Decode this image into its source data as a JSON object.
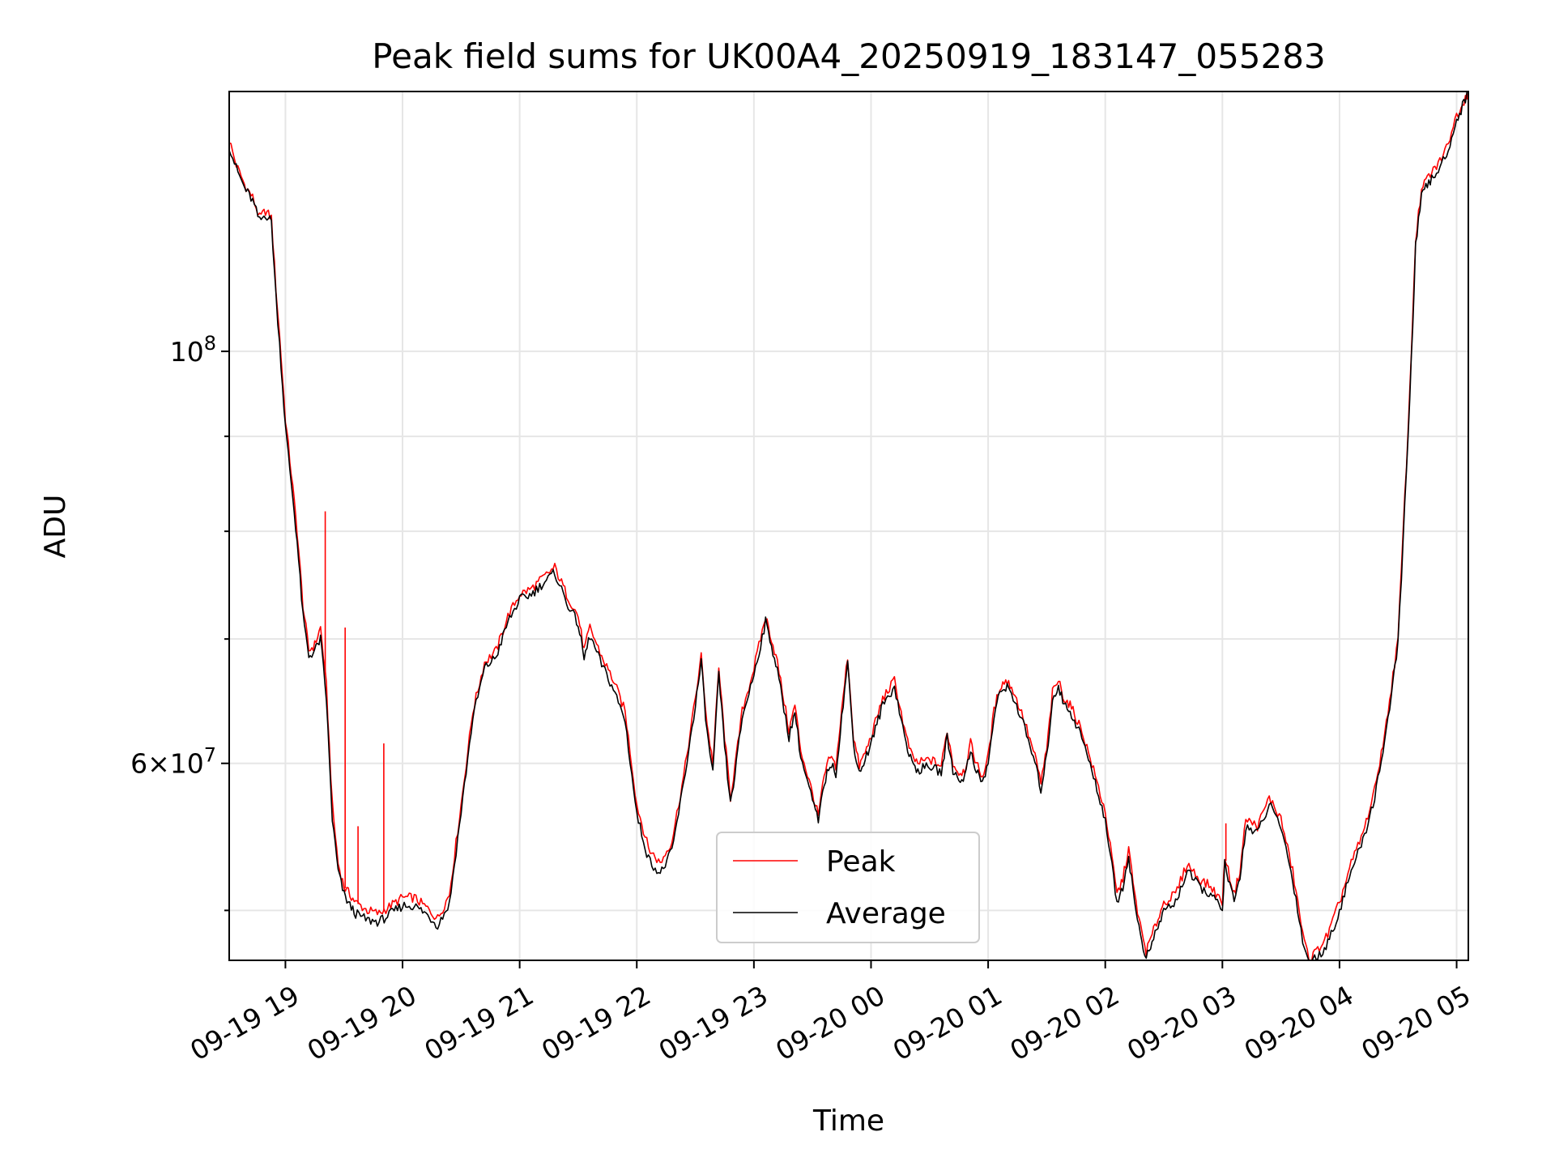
{
  "chart_data": {
    "type": "line",
    "title": "Peak field sums for UK00A4_20250919_183147_055283",
    "xlabel": "Time",
    "ylabel": "ADU",
    "y_scale": "log",
    "ylim": [
      47000000,
      138000000
    ],
    "xlim_hours": [
      18.52,
      29.1
    ],
    "grid": true,
    "legend_position": "lower center",
    "x_ticks": [
      {
        "hour": 19,
        "label": "09-19 19"
      },
      {
        "hour": 20,
        "label": "09-19 20"
      },
      {
        "hour": 21,
        "label": "09-19 21"
      },
      {
        "hour": 22,
        "label": "09-19 22"
      },
      {
        "hour": 23,
        "label": "09-19 23"
      },
      {
        "hour": 24,
        "label": "09-20 00"
      },
      {
        "hour": 25,
        "label": "09-20 01"
      },
      {
        "hour": 26,
        "label": "09-20 02"
      },
      {
        "hour": 27,
        "label": "09-20 03"
      },
      {
        "hour": 28,
        "label": "09-20 04"
      },
      {
        "hour": 29,
        "label": "09-20 05"
      }
    ],
    "y_major_ticks": [
      {
        "value": 100000000,
        "mantissa": "",
        "base": "10",
        "exponent": "8"
      },
      {
        "value": 60000000,
        "mantissa": "6",
        "base": "10",
        "exponent": "7"
      }
    ],
    "y_minor_ticks": [
      50000000,
      70000000,
      80000000,
      90000000
    ],
    "series": [
      {
        "name": "Peak",
        "color": "#ff0000",
        "x_hours": [
          18.52,
          18.58,
          18.65,
          18.72,
          18.78,
          18.83,
          18.88,
          18.92,
          18.95,
          19.0,
          19.05,
          19.1,
          19.15,
          19.2,
          19.25,
          19.3,
          19.35,
          19.4,
          19.45,
          19.5,
          19.55,
          19.6,
          19.7,
          19.8,
          19.9,
          20.0,
          20.1,
          20.2,
          20.3,
          20.4,
          20.5,
          20.6,
          20.7,
          20.8,
          20.9,
          21.0,
          21.1,
          21.2,
          21.3,
          21.4,
          21.5,
          21.55,
          21.6,
          21.7,
          21.8,
          21.9,
          22.0,
          22.1,
          22.2,
          22.3,
          22.4,
          22.5,
          22.55,
          22.6,
          22.65,
          22.7,
          22.75,
          22.8,
          22.85,
          22.9,
          23.0,
          23.1,
          23.15,
          23.2,
          23.3,
          23.35,
          23.4,
          23.5,
          23.55,
          23.6,
          23.65,
          23.7,
          23.75,
          23.8,
          23.85,
          23.9,
          23.95,
          24.0,
          24.05,
          24.1,
          24.2,
          24.3,
          24.35,
          24.4,
          24.5,
          24.6,
          24.65,
          24.7,
          24.75,
          24.8,
          24.85,
          24.9,
          24.95,
          25.0,
          25.05,
          25.1,
          25.15,
          25.2,
          25.3,
          25.4,
          25.45,
          25.5,
          25.55,
          25.6,
          25.65,
          25.7,
          25.75,
          25.8,
          25.9,
          26.0,
          26.1,
          26.15,
          26.2,
          26.25,
          26.3,
          26.35,
          26.4,
          26.45,
          26.5,
          26.6,
          26.7,
          26.8,
          26.9,
          27.0,
          27.02,
          27.05,
          27.1,
          27.15,
          27.2,
          27.3,
          27.4,
          27.5,
          27.6,
          27.7,
          27.75,
          27.8,
          27.9,
          28.0,
          28.1,
          28.2,
          28.3,
          28.4,
          28.5,
          28.6,
          28.65,
          28.7,
          28.75,
          28.8,
          28.9,
          29.0,
          29.05,
          29.1
        ],
        "values": [
          130000000,
          126000000,
          123000000,
          121000000,
          118000000,
          119000000,
          118000000,
          108000000,
          102000000,
          92000000,
          86000000,
          80000000,
          73000000,
          69000000,
          69500000,
          71000000,
          66000000,
          57000000,
          53000000,
          51500000,
          51000000,
          50500000,
          50000000,
          49800000,
          50300000,
          50800000,
          50800000,
          50200000,
          49500000,
          51000000,
          57000000,
          64000000,
          68000000,
          69000000,
          72000000,
          74000000,
          74500000,
          75500000,
          76500000,
          74000000,
          72000000,
          69000000,
          71000000,
          68500000,
          66500000,
          64000000,
          57000000,
          54000000,
          53000000,
          54500000,
          59000000,
          65000000,
          68500000,
          63000000,
          60000000,
          67500000,
          62000000,
          57500000,
          60500000,
          64000000,
          67500000,
          72000000,
          70000000,
          68000000,
          62500000,
          64500000,
          61000000,
          57800000,
          56200000,
          59000000,
          60500000,
          59800000,
          64000000,
          68500000,
          62000000,
          59800000,
          60800000,
          62000000,
          63500000,
          65000000,
          66500000,
          62000000,
          60500000,
          60000000,
          60300000,
          59800000,
          62500000,
          60000000,
          59300000,
          59500000,
          61500000,
          60000000,
          59000000,
          60500000,
          64000000,
          66000000,
          66500000,
          66000000,
          63500000,
          60500000,
          58600000,
          61000000,
          65500000,
          66500000,
          65000000,
          64500000,
          63500000,
          62500000,
          59500000,
          56500000,
          51000000,
          52000000,
          54000000,
          51000000,
          49000000,
          47500000,
          48500000,
          49500000,
          50500000,
          51000000,
          53000000,
          52000000,
          51500000,
          50500000,
          53500000,
          52500000,
          51000000,
          52500000,
          56000000,
          55500000,
          57500000,
          56000000,
          52500000,
          48000000,
          47100000,
          47500000,
          48500000,
          50500000,
          53000000,
          55000000,
          58000000,
          63000000,
          70000000,
          95000000,
          115000000,
          122000000,
          124000000,
          125000000,
          128000000,
          134000000,
          136000000,
          138000000
        ]
      },
      {
        "name": "Average",
        "color": "#000000",
        "x_hours": [
          18.52,
          18.58,
          18.65,
          18.72,
          18.78,
          18.83,
          18.88,
          18.92,
          18.95,
          19.0,
          19.05,
          19.1,
          19.15,
          19.2,
          19.25,
          19.3,
          19.35,
          19.4,
          19.45,
          19.5,
          19.55,
          19.6,
          19.7,
          19.8,
          19.9,
          20.0,
          20.1,
          20.2,
          20.3,
          20.4,
          20.5,
          20.6,
          20.7,
          20.8,
          20.9,
          21.0,
          21.1,
          21.2,
          21.3,
          21.4,
          21.5,
          21.55,
          21.6,
          21.7,
          21.8,
          21.9,
          22.0,
          22.1,
          22.2,
          22.3,
          22.4,
          22.5,
          22.55,
          22.6,
          22.65,
          22.7,
          22.75,
          22.8,
          22.85,
          22.9,
          23.0,
          23.1,
          23.15,
          23.2,
          23.3,
          23.35,
          23.4,
          23.5,
          23.55,
          23.6,
          23.65,
          23.7,
          23.75,
          23.8,
          23.85,
          23.9,
          23.95,
          24.0,
          24.05,
          24.1,
          24.2,
          24.3,
          24.35,
          24.4,
          24.5,
          24.6,
          24.65,
          24.7,
          24.75,
          24.8,
          24.85,
          24.9,
          24.95,
          25.0,
          25.05,
          25.1,
          25.15,
          25.2,
          25.3,
          25.4,
          25.45,
          25.5,
          25.55,
          25.6,
          25.65,
          25.7,
          25.75,
          25.8,
          25.9,
          26.0,
          26.1,
          26.15,
          26.2,
          26.25,
          26.3,
          26.35,
          26.4,
          26.45,
          26.5,
          26.6,
          26.7,
          26.8,
          26.9,
          27.0,
          27.02,
          27.05,
          27.1,
          27.15,
          27.2,
          27.3,
          27.4,
          27.5,
          27.6,
          27.7,
          27.75,
          27.8,
          27.9,
          28.0,
          28.1,
          28.2,
          28.3,
          28.4,
          28.5,
          28.6,
          28.65,
          28.7,
          28.75,
          28.8,
          28.9,
          29.0,
          29.05,
          29.1
        ],
        "values": [
          129000000,
          125500000,
          122500000,
          120500000,
          117500000,
          118500000,
          117500000,
          107000000,
          101000000,
          91000000,
          85000000,
          79000000,
          72000000,
          68500000,
          69000000,
          70000000,
          65000000,
          56000000,
          52500000,
          51000000,
          50300000,
          49800000,
          49400000,
          49300000,
          49800000,
          50300000,
          50300000,
          49800000,
          49100000,
          50400000,
          56500000,
          63500000,
          67500000,
          68500000,
          71500000,
          73500000,
          74000000,
          75000000,
          76000000,
          73300000,
          71300000,
          68300000,
          70300000,
          67800000,
          65800000,
          63300000,
          56300000,
          53300000,
          52300000,
          53800000,
          58500000,
          64500000,
          68000000,
          62300000,
          59300000,
          67000000,
          61300000,
          57000000,
          60000000,
          63500000,
          67000000,
          71500000,
          69500000,
          67300000,
          62000000,
          64000000,
          60500000,
          57300000,
          55800000,
          58500000,
          60000000,
          59300000,
          63500000,
          68000000,
          61500000,
          59300000,
          60300000,
          61500000,
          63000000,
          64500000,
          66000000,
          61500000,
          60000000,
          59500000,
          59800000,
          59300000,
          62000000,
          59500000,
          58800000,
          59000000,
          61000000,
          59500000,
          58500000,
          60000000,
          63500000,
          65500000,
          66000000,
          65500000,
          63000000,
          60000000,
          58100000,
          60500000,
          65000000,
          66000000,
          64500000,
          64000000,
          63000000,
          62000000,
          59000000,
          56000000,
          50500000,
          51500000,
          53500000,
          50500000,
          48500000,
          47100000,
          48000000,
          49000000,
          50000000,
          50500000,
          52500000,
          51500000,
          51000000,
          50000000,
          53000000,
          52000000,
          50500000,
          52000000,
          55500000,
          55000000,
          57000000,
          55500000,
          52000000,
          47600000,
          47000000,
          47100000,
          48000000,
          50000000,
          52500000,
          54500000,
          57500000,
          62500000,
          69500000,
          94000000,
          114000000,
          121000000,
          123000000,
          124000000,
          127000000,
          133000000,
          135500000,
          138000000
        ]
      }
    ],
    "spikes": [
      {
        "series": "Peak",
        "hour": 19.34,
        "value": 82000000
      },
      {
        "series": "Peak",
        "hour": 19.51,
        "value": 71000000
      },
      {
        "series": "Peak",
        "hour": 19.84,
        "value": 61500000
      },
      {
        "series": "Peak",
        "hour": 19.62,
        "value": 55500000
      },
      {
        "series": "Peak",
        "hour": 27.03,
        "value": 55700000
      }
    ]
  }
}
